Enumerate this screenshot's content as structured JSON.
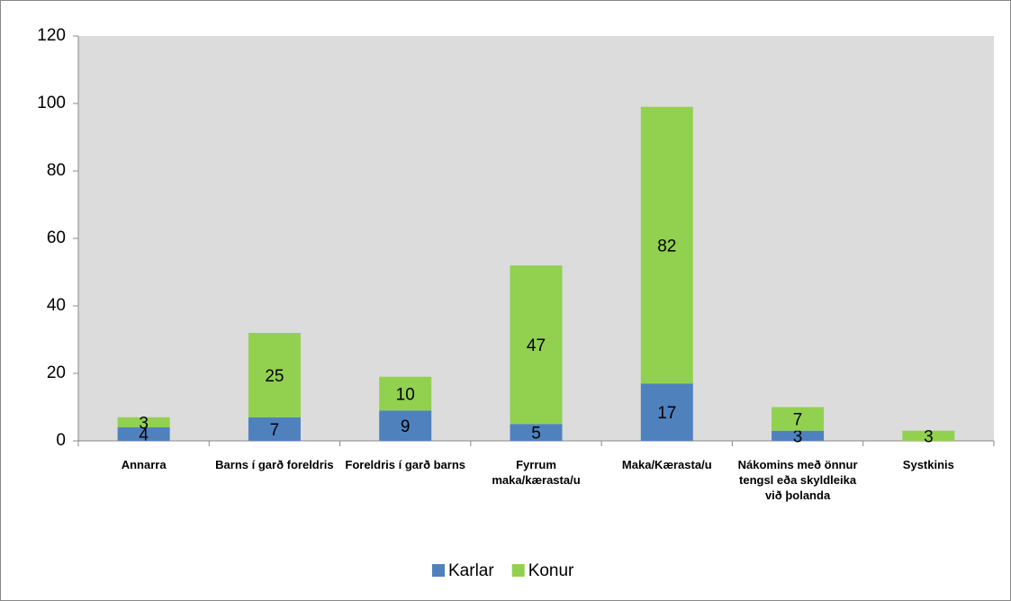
{
  "chart_data": {
    "type": "bar",
    "stacked": true,
    "categories": [
      "Annarra",
      "Barns í garð foreldris",
      "Foreldris í garð barns",
      "Fyrrum maka/kærasta/u",
      "Maka/Kærasta/u",
      "Nákomins með önnur tengsl eða skyldleika við þolanda",
      "Systkinis"
    ],
    "series": [
      {
        "name": "Karlar",
        "color": "#4f81bd",
        "values": [
          4,
          7,
          9,
          5,
          17,
          3,
          null
        ]
      },
      {
        "name": "Konur",
        "color": "#92d050",
        "values": [
          3,
          25,
          10,
          47,
          82,
          7,
          3
        ]
      }
    ],
    "ylim": [
      0,
      120
    ],
    "yticks": [
      0,
      20,
      40,
      60,
      80,
      100,
      120
    ],
    "grid": false,
    "legend": "bottom"
  }
}
